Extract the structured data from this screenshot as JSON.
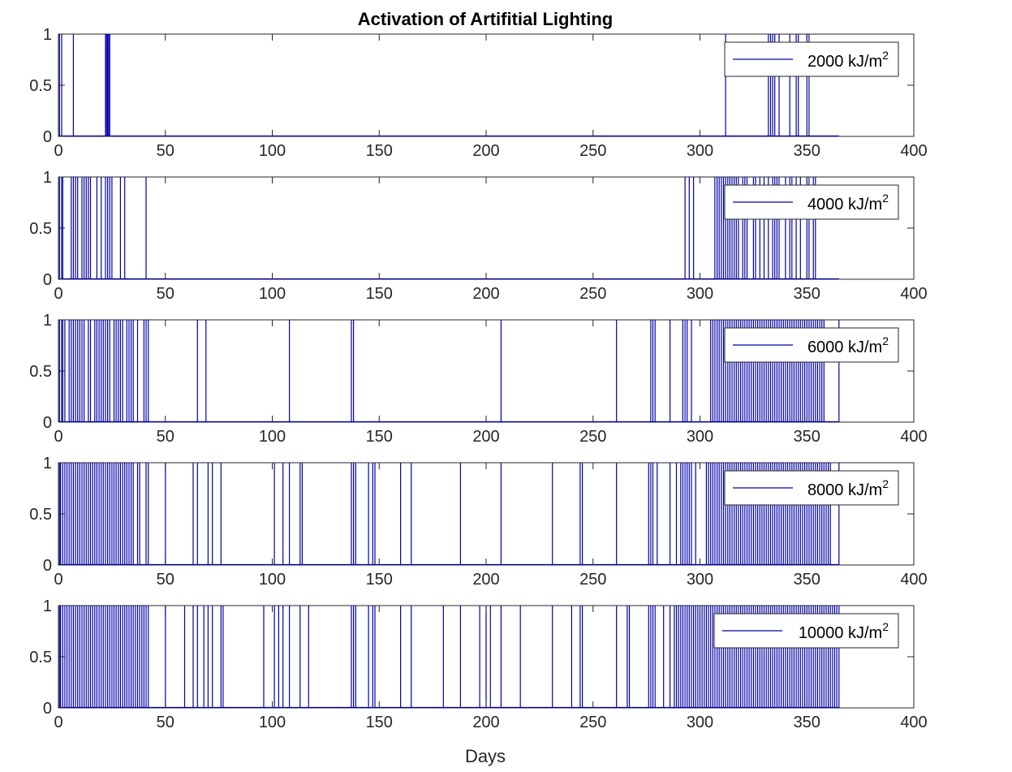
{
  "chart_data": {
    "type": "line",
    "title": "Activation of Artifitial Lighting",
    "xlabel": "Days",
    "ylabel": "",
    "xlim": [
      0,
      400
    ],
    "ylim": [
      0,
      1
    ],
    "xticks": [
      0,
      50,
      100,
      150,
      200,
      250,
      300,
      350,
      400
    ],
    "yticks": [
      0,
      0.5,
      1
    ],
    "xtick_labels": [
      "0",
      "50",
      "100",
      "150",
      "200",
      "250",
      "300",
      "350",
      "400"
    ],
    "ytick_labels": [
      "0",
      "0.5",
      "1"
    ],
    "grid": false,
    "legend_position": "top-right",
    "line_color": "#0000a8",
    "series": [
      {
        "name": "2000 kJ/m",
        "legend_superscript": "2",
        "x_end": 365,
        "activation_days": [
          0.5,
          1.5,
          7,
          22,
          22.5,
          23,
          23.5,
          24,
          312,
          332,
          333,
          334,
          335,
          337,
          342,
          345,
          346,
          350,
          351
        ]
      },
      {
        "name": "4000 kJ/m",
        "legend_superscript": "2",
        "x_end": 365,
        "activation_days": [
          0.5,
          1.5,
          2,
          6,
          7,
          8,
          9,
          11,
          12,
          13,
          14,
          15,
          18,
          20,
          22,
          23,
          24,
          25,
          29,
          31,
          41,
          293,
          295,
          297,
          307,
          308,
          309,
          310,
          311,
          312,
          313,
          314,
          315,
          316,
          317,
          318,
          320,
          321,
          322,
          325,
          326,
          328,
          330,
          332,
          334,
          335,
          336,
          337,
          340,
          342,
          343,
          345,
          347,
          350,
          351,
          353,
          354
        ]
      },
      {
        "name": "6000 kJ/m",
        "legend_superscript": "2",
        "x_end": 365,
        "activation_days": [
          0.5,
          1.5,
          2,
          3,
          5,
          6,
          7,
          8,
          9,
          10,
          11,
          12,
          14,
          15,
          17,
          18,
          19,
          20,
          21,
          22,
          23,
          24,
          26,
          27,
          28,
          29,
          30,
          32,
          33,
          34,
          35,
          37,
          40,
          41,
          42,
          65,
          69,
          108,
          137,
          138,
          207,
          261,
          277,
          278,
          279,
          286,
          292,
          293,
          294,
          296,
          305,
          306,
          307,
          308,
          309,
          310,
          311,
          312,
          313,
          314,
          315,
          316,
          317,
          318,
          319,
          320,
          321,
          322,
          323,
          324,
          325,
          326,
          327,
          328,
          329,
          330,
          331,
          332,
          333,
          334,
          335,
          336,
          337,
          338,
          339,
          340,
          341,
          342,
          343,
          344,
          345,
          346,
          347,
          348,
          349,
          350,
          351,
          352,
          353,
          354,
          355,
          356,
          357,
          358,
          365
        ]
      },
      {
        "name": "8000 kJ/m",
        "legend_superscript": "2",
        "x_end": 365,
        "activation_days": [
          0.5,
          1,
          2,
          3,
          4,
          5,
          6,
          7,
          8,
          9,
          10,
          11,
          12,
          13,
          14,
          15,
          16,
          17,
          18,
          19,
          20,
          21,
          22,
          23,
          24,
          25,
          26,
          27,
          28,
          29,
          30,
          31,
          32,
          33,
          34,
          35,
          37,
          38,
          41,
          42,
          50,
          63,
          65,
          70,
          72,
          76,
          101,
          105,
          108,
          113,
          114,
          137,
          138,
          139,
          145,
          147,
          148,
          160,
          165,
          188,
          207,
          231,
          244,
          245,
          261,
          276,
          277,
          278,
          280,
          286,
          289,
          291,
          292,
          293,
          294,
          295,
          296,
          298,
          303,
          304,
          305,
          306,
          307,
          308,
          309,
          310,
          311,
          312,
          313,
          314,
          315,
          316,
          317,
          318,
          319,
          320,
          321,
          322,
          323,
          324,
          325,
          326,
          327,
          328,
          329,
          330,
          331,
          332,
          333,
          334,
          335,
          336,
          337,
          338,
          339,
          340,
          341,
          342,
          343,
          344,
          345,
          346,
          347,
          348,
          349,
          350,
          351,
          352,
          353,
          354,
          355,
          356,
          357,
          358,
          359,
          360,
          361,
          365
        ]
      },
      {
        "name": "10000 kJ/m",
        "legend_superscript": "2",
        "x_end": 365,
        "activation_days": [
          0.5,
          1,
          2,
          3,
          4,
          5,
          6,
          7,
          8,
          9,
          10,
          11,
          12,
          13,
          14,
          15,
          16,
          17,
          18,
          19,
          20,
          21,
          22,
          23,
          24,
          25,
          26,
          27,
          28,
          29,
          30,
          31,
          32,
          33,
          34,
          35,
          36,
          37,
          38,
          39,
          40,
          41,
          42,
          50,
          59,
          63,
          65,
          68,
          70,
          72,
          76,
          77,
          96,
          101,
          103,
          105,
          108,
          113,
          117,
          137,
          138,
          139,
          145,
          147,
          148,
          160,
          165,
          180,
          188,
          197,
          200,
          202,
          207,
          216,
          231,
          240,
          244,
          245,
          261,
          266,
          267,
          276,
          277,
          278,
          279,
          283,
          286,
          288,
          289,
          290,
          291,
          292,
          293,
          294,
          295,
          296,
          297,
          298,
          299,
          300,
          301,
          302,
          303,
          304,
          305,
          306,
          307,
          308,
          309,
          310,
          311,
          312,
          313,
          314,
          315,
          316,
          317,
          318,
          319,
          320,
          321,
          322,
          323,
          324,
          325,
          326,
          327,
          328,
          329,
          330,
          331,
          332,
          333,
          334,
          335,
          336,
          337,
          338,
          339,
          340,
          341,
          342,
          343,
          344,
          345,
          346,
          347,
          348,
          349,
          350,
          351,
          352,
          353,
          354,
          355,
          356,
          357,
          358,
          359,
          360,
          361,
          362,
          363,
          364,
          365
        ]
      }
    ]
  }
}
